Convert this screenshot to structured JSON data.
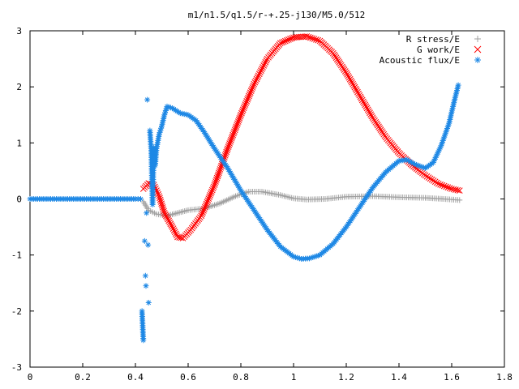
{
  "chart_data": {
    "type": "scatter",
    "title": "m1/n1.5/q1.5/r-+.25-j130/M5.0/512",
    "xlabel": "",
    "ylabel": "",
    "xlim": [
      0,
      1.8
    ],
    "ylim": [
      -3,
      3
    ],
    "xticks": [
      "0",
      "0.2",
      "0.4",
      "0.6",
      "0.8",
      "1",
      "1.2",
      "1.4",
      "1.6",
      "1.8"
    ],
    "yticks": [
      "-3",
      "-2",
      "-1",
      "0",
      "1",
      "2",
      "3"
    ],
    "grid": false,
    "legend_position": "top-right",
    "series": [
      {
        "name": "R stress/E",
        "marker": "+",
        "color": "#a0a0a0",
        "points": [
          [
            0.43,
            -0.05
          ],
          [
            0.45,
            -0.2
          ],
          [
            0.48,
            -0.27
          ],
          [
            0.52,
            -0.3
          ],
          [
            0.56,
            -0.25
          ],
          [
            0.6,
            -0.2
          ],
          [
            0.66,
            -0.17
          ],
          [
            0.72,
            -0.08
          ],
          [
            0.78,
            0.05
          ],
          [
            0.83,
            0.13
          ],
          [
            0.88,
            0.13
          ],
          [
            0.95,
            0.07
          ],
          [
            1.0,
            0.01
          ],
          [
            1.05,
            -0.01
          ],
          [
            1.12,
            0.0
          ],
          [
            1.2,
            0.04
          ],
          [
            1.3,
            0.05
          ],
          [
            1.4,
            0.03
          ],
          [
            1.5,
            0.02
          ],
          [
            1.57,
            0.0
          ],
          [
            1.63,
            -0.02
          ]
        ]
      },
      {
        "name": "G work/E",
        "marker": "x",
        "color": "#ff0000",
        "points": [
          [
            0.43,
            0.18
          ],
          [
            0.45,
            0.28
          ],
          [
            0.47,
            0.25
          ],
          [
            0.49,
            0.05
          ],
          [
            0.51,
            -0.25
          ],
          [
            0.54,
            -0.5
          ],
          [
            0.56,
            -0.68
          ],
          [
            0.58,
            -0.7
          ],
          [
            0.61,
            -0.55
          ],
          [
            0.65,
            -0.3
          ],
          [
            0.7,
            0.25
          ],
          [
            0.75,
            0.9
          ],
          [
            0.8,
            1.5
          ],
          [
            0.85,
            2.05
          ],
          [
            0.9,
            2.5
          ],
          [
            0.95,
            2.78
          ],
          [
            1.0,
            2.88
          ],
          [
            1.05,
            2.9
          ],
          [
            1.1,
            2.82
          ],
          [
            1.15,
            2.6
          ],
          [
            1.2,
            2.25
          ],
          [
            1.25,
            1.85
          ],
          [
            1.3,
            1.45
          ],
          [
            1.35,
            1.1
          ],
          [
            1.4,
            0.82
          ],
          [
            1.45,
            0.6
          ],
          [
            1.5,
            0.42
          ],
          [
            1.55,
            0.27
          ],
          [
            1.6,
            0.18
          ],
          [
            1.63,
            0.15
          ]
        ]
      },
      {
        "name": "Acoustic flux/E",
        "marker": "*",
        "color": "#1e88e5",
        "points": [
          [
            0.0,
            0.0
          ],
          [
            0.1,
            0.0
          ],
          [
            0.2,
            0.0
          ],
          [
            0.3,
            0.0
          ],
          [
            0.4,
            0.0
          ],
          [
            0.42,
            0.0
          ],
          [
            0.425,
            -2.0
          ],
          [
            0.43,
            -2.52
          ],
          [
            0.435,
            -0.75
          ],
          [
            0.438,
            -1.37
          ],
          [
            0.44,
            -1.55
          ],
          [
            0.442,
            -0.25
          ],
          [
            0.445,
            1.77
          ],
          [
            0.448,
            -0.82
          ],
          [
            0.45,
            -1.85
          ],
          [
            0.455,
            1.22
          ],
          [
            0.46,
            0.87
          ],
          [
            0.465,
            -0.1
          ],
          [
            0.47,
            0.92
          ],
          [
            0.475,
            0.6
          ],
          [
            0.48,
            0.9
          ],
          [
            0.49,
            1.15
          ],
          [
            0.5,
            1.3
          ],
          [
            0.51,
            1.5
          ],
          [
            0.52,
            1.65
          ],
          [
            0.54,
            1.62
          ],
          [
            0.57,
            1.53
          ],
          [
            0.6,
            1.5
          ],
          [
            0.63,
            1.4
          ],
          [
            0.66,
            1.2
          ],
          [
            0.7,
            0.9
          ],
          [
            0.75,
            0.55
          ],
          [
            0.8,
            0.15
          ],
          [
            0.85,
            -0.2
          ],
          [
            0.9,
            -0.55
          ],
          [
            0.95,
            -0.85
          ],
          [
            1.0,
            -1.03
          ],
          [
            1.03,
            -1.07
          ],
          [
            1.06,
            -1.06
          ],
          [
            1.1,
            -1.0
          ],
          [
            1.15,
            -0.8
          ],
          [
            1.2,
            -0.5
          ],
          [
            1.25,
            -0.15
          ],
          [
            1.3,
            0.2
          ],
          [
            1.35,
            0.48
          ],
          [
            1.4,
            0.68
          ],
          [
            1.43,
            0.7
          ],
          [
            1.46,
            0.62
          ],
          [
            1.5,
            0.55
          ],
          [
            1.53,
            0.65
          ],
          [
            1.56,
            0.95
          ],
          [
            1.59,
            1.35
          ],
          [
            1.61,
            1.75
          ],
          [
            1.625,
            2.03
          ]
        ]
      }
    ]
  }
}
